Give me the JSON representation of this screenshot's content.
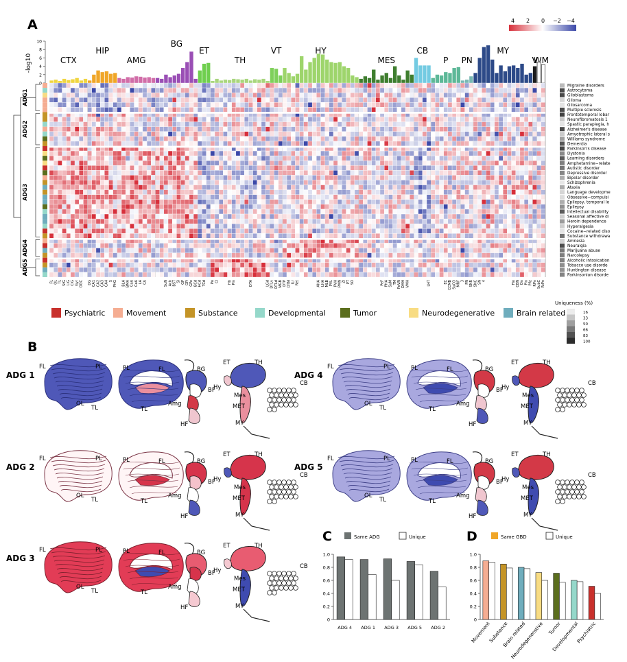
{
  "panels": {
    "a": "A",
    "b": "B",
    "c": "C",
    "d": "D"
  },
  "colors": {
    "red": "#d7303b",
    "pink": "#e8778a",
    "blue": "#3b48a8",
    "lightblue": "#8f95d2",
    "white": "#ffffff",
    "psychiatric": "#c8302c",
    "movement": "#f5ad92",
    "substance": "#c49427",
    "developmental": "#95d8ca",
    "tumor": "#5b6e1d",
    "neurodegenerative": "#f8dc83",
    "brain_related": "#6fadbd",
    "bar_gray": "#6d7372"
  },
  "scale": {
    "ticks": [
      "4",
      "2",
      "0",
      "−2",
      "−4"
    ]
  },
  "yaxis": {
    "label": "-log10",
    "ticks": [
      "0",
      "2",
      "4",
      "6",
      "8",
      "10"
    ]
  },
  "regions": [
    {
      "name": "CTX",
      "n": 9,
      "color": "#f0d540",
      "h": [
        0.6,
        0.8,
        0.5,
        1.0,
        0.7,
        0.9,
        1.2,
        0.6,
        1.0
      ]
    },
    {
      "name": "HIP",
      "n": 7,
      "color": "#f0a628",
      "h": [
        0.6,
        2.0,
        3.0,
        2.6,
        2.8,
        2.2,
        2.4
      ]
    },
    {
      "name": "AMG",
      "n": 9,
      "color": "#d16da8",
      "h": [
        1.2,
        1.0,
        1.4,
        1.3,
        1.6,
        1.5,
        1.3,
        1.4,
        1.2
      ]
    },
    {
      "name": "BG",
      "n": 10,
      "color": "#9a4fb5",
      "h": [
        1.2,
        1.0,
        2.0,
        1.4,
        1.8,
        2.2,
        3.6,
        5.0,
        7.5,
        1.0
      ]
    },
    {
      "name": "ET",
      "n": 3,
      "color": "#6fcf4e",
      "h": [
        3.0,
        4.6,
        4.8
      ]
    },
    {
      "name": "TH",
      "n": 14,
      "color": "#a9d67e",
      "h": [
        0.5,
        1.0,
        0.6,
        0.8,
        0.7,
        1.0,
        0.9,
        0.8,
        1.0,
        0.6,
        0.9,
        0.8,
        1.0,
        0.5
      ]
    },
    {
      "name": "VT",
      "n": 3,
      "color": "#7fd05b",
      "h": [
        3.6,
        3.4,
        1.8
      ]
    },
    {
      "name": "HY",
      "n": 18,
      "color": "#9ed56c",
      "h": [
        3.6,
        2.4,
        1.6,
        2.2,
        6.4,
        3.2,
        5.0,
        6.0,
        7.0,
        6.8,
        5.6,
        5.0,
        4.8,
        5.0,
        4.0,
        3.6,
        1.8,
        1.4
      ]
    },
    {
      "name": "MES",
      "n": 13,
      "color": "#3f7e2f",
      "h": [
        1.0,
        1.6,
        1.2,
        3.2,
        0.8,
        1.8,
        2.4,
        1.2,
        4.0,
        1.8,
        0.8,
        3.0,
        2.0
      ]
    },
    {
      "name": "CB",
      "n": 4,
      "color": "#74cbe2",
      "h": [
        6.0,
        4.2,
        4.2,
        4.2
      ]
    },
    {
      "name": "P",
      "n": 7,
      "color": "#5db898",
      "h": [
        1.2,
        2.0,
        1.8,
        2.6,
        2.4,
        3.6,
        3.8
      ]
    },
    {
      "name": "PN",
      "n": 3,
      "color": "#79b8b3",
      "h": [
        0.6,
        0.8,
        1.6
      ]
    },
    {
      "name": "MY",
      "n": 14,
      "color": "#2d4a88",
      "h": [
        2.4,
        6.0,
        8.6,
        9.0,
        5.6,
        2.4,
        4.2,
        2.8,
        4.0,
        4.2,
        3.6,
        4.6,
        2.0,
        2.4
      ]
    },
    {
      "name": "V",
      "n": 1,
      "color": "#1d1d1d",
      "h": [
        4.0
      ]
    },
    {
      "name": "WM",
      "n": 2,
      "color": "#ffffff",
      "h": [
        5.0,
        4.4
      ]
    }
  ],
  "adg_labels": [
    "ADG1",
    "ADG2",
    "ADG3",
    "ADG4",
    "ADG5"
  ],
  "adg_rows": [
    6,
    7,
    19,
    4,
    4
  ],
  "diseases": [
    "Migraine disorders",
    "Astrocytoma",
    "Glioblastoma",
    "Glioma",
    "Gliosarcoma",
    "Multiple sclerosis",
    "Frontotemporal lobar",
    "Neurofibromatosis 1",
    "Spastic paraplegia, h",
    "Alzheimer's disease",
    "Amyotrophic lateral s",
    "Williams syndrome",
    "Dementia",
    "Parkinson's disease",
    "Dystonia",
    "Learning disorders",
    "Amphetamine−relate",
    "Autistic disorder",
    "Depressive disorder",
    "Bipolar disorder",
    "Schizophrenia",
    "Ataxia",
    "Language developme",
    "Obsessive−compulsi",
    "Epilepsy, temporal lo",
    "Epilepsy",
    "Intellectual disability",
    "Seasonal affective di",
    "Heroin dependence",
    "Hyperalgesia",
    "Cocaine−related diso",
    "Substance withdrawa",
    "Amnesia",
    "Neuralgia",
    "Marijuana abuse",
    "Narcolepsy",
    "Alcoholic intoxication",
    "Tobacco use disorde",
    "Huntington disease",
    "Parkinsonian disorde"
  ],
  "subregions": [
    "FL",
    "OL",
    "TL",
    "SfG",
    "LiG",
    "CiG",
    "Gyr",
    "OGC",
    "",
    "DG",
    "CA1",
    "CA2",
    "CA3",
    "CA4",
    "S",
    "PHG",
    "",
    "BLA",
    "BMA",
    "CoA",
    "CeA",
    "LA",
    "CA",
    "",
    "",
    "",
    "",
    "SuN",
    "Acb",
    "BST",
    "SI",
    "GP",
    "GPi",
    "GPe",
    "BCd",
    "HCd",
    "TCd",
    "",
    "Pu",
    "Cl",
    "",
    "",
    "Hb",
    "Pin",
    "",
    "",
    "",
    "DTA",
    "",
    "",
    "",
    "LGd",
    "DTLv",
    "DTLd",
    "MGB",
    "DTP",
    "DTM",
    "ILr",
    "Ret",
    "",
    "",
    "",
    "",
    "AHA",
    "LHA",
    "MLB",
    "PVL",
    "PVH",
    "PMN",
    "ZI",
    "PT",
    "SO",
    "",
    "",
    "",
    "",
    "",
    "",
    "PeF",
    "PHA",
    "SuM",
    "TM",
    "PeVN",
    "DMH",
    "VMH",
    "",
    "",
    "",
    "",
    "LHT",
    "",
    "",
    "",
    "EC",
    "CCMB",
    "SuCO",
    "MRF",
    "3",
    "PN",
    "SNR",
    "SNC",
    "SN",
    "4",
    "",
    "",
    "",
    "",
    "",
    "",
    "Flo",
    "CBN",
    "Dn",
    "Pin",
    "PRt",
    "RPn",
    "SubC",
    "RtPn",
    "SOC",
    "MPB",
    "LC",
    "7",
    "",
    "PLS",
    "",
    "",
    "",
    "",
    "",
    "",
    "",
    "",
    "",
    "",
    "",
    "",
    "",
    "",
    "",
    "",
    "",
    "",
    "IO",
    "RaM",
    "LRN",
    "Pn",
    "",
    "Pro",
    "RPa",
    "",
    "",
    "SpV",
    "",
    "",
    "",
    "",
    "",
    "cbp",
    "cc"
  ],
  "legend": {
    "title": "Uniqueness (%)",
    "items": [
      {
        "label": "Psychiatric",
        "color": "#c8302c"
      },
      {
        "label": "Movement",
        "color": "#f5ad92"
      },
      {
        "label": "Substance",
        "color": "#c49427"
      },
      {
        "label": "Developmental",
        "color": "#95d8ca"
      },
      {
        "label": "Tumor",
        "color": "#5b6e1d"
      },
      {
        "label": "Neurodegenerative",
        "color": "#f8dc83"
      },
      {
        "label": "Brain related",
        "color": "#6fadbd"
      }
    ]
  },
  "uniqueness_scale": {
    "ticks": [
      "16",
      "33",
      "50",
      "66",
      "83",
      "100"
    ]
  },
  "brains": [
    {
      "label": "ADG 1",
      "scheme": "blue"
    },
    {
      "label": "ADG 2",
      "scheme": "white"
    },
    {
      "label": "ADG 3",
      "scheme": "red"
    },
    {
      "label": "ADG 4",
      "scheme": "lightblue"
    },
    {
      "label": "ADG 5",
      "scheme": "lightblue"
    }
  ],
  "brain_labels": {
    "fl": "FL",
    "pl": "PL",
    "tl": "TL",
    "ol": "OL",
    "bg": "BG",
    "bf": "BF",
    "amg": "Amg",
    "hf": "HF",
    "et": "ET",
    "th": "TH",
    "hy": "Hy",
    "mes": "Mes",
    "met": "MET",
    "my": "MY",
    "cb": "CB"
  },
  "chart_data": [
    {
      "type": "bar",
      "panel": "C",
      "title": "",
      "legend": [
        "Same ADG",
        "Unique"
      ],
      "categories": [
        "ADG 4",
        "ADG 1",
        "ADG 3",
        "ADG 5",
        "ADG 2"
      ],
      "series": [
        {
          "name": "Same ADG",
          "values": [
            0.96,
            0.92,
            0.93,
            0.89,
            0.74
          ]
        },
        {
          "name": "Unique",
          "values": [
            0.92,
            0.69,
            0.6,
            0.84,
            0.5
          ]
        }
      ],
      "yticks": [
        "0",
        "0.2",
        "0.4",
        "0.6",
        "0.8",
        "1.0"
      ],
      "ylim": [
        0,
        1
      ]
    },
    {
      "type": "bar",
      "panel": "D",
      "title": "",
      "legend": [
        "Same GBD",
        "Unique"
      ],
      "categories": [
        "Movement",
        "Substance",
        "Brain related",
        "Neurodegenerative",
        "Tumor",
        "Developmental",
        "Psychiatric"
      ],
      "series": [
        {
          "name": "Same GBD",
          "values": [
            0.9,
            0.85,
            0.8,
            0.72,
            0.71,
            0.6,
            0.51
          ]
        },
        {
          "name": "Unique",
          "values": [
            0.88,
            0.79,
            0.78,
            0.6,
            0.57,
            0.58,
            0.4
          ]
        }
      ],
      "yticks": [
        "0",
        "0.2",
        "0.4",
        "0.6",
        "0.8",
        "1.0"
      ],
      "ylim": [
        0,
        1
      ]
    }
  ]
}
